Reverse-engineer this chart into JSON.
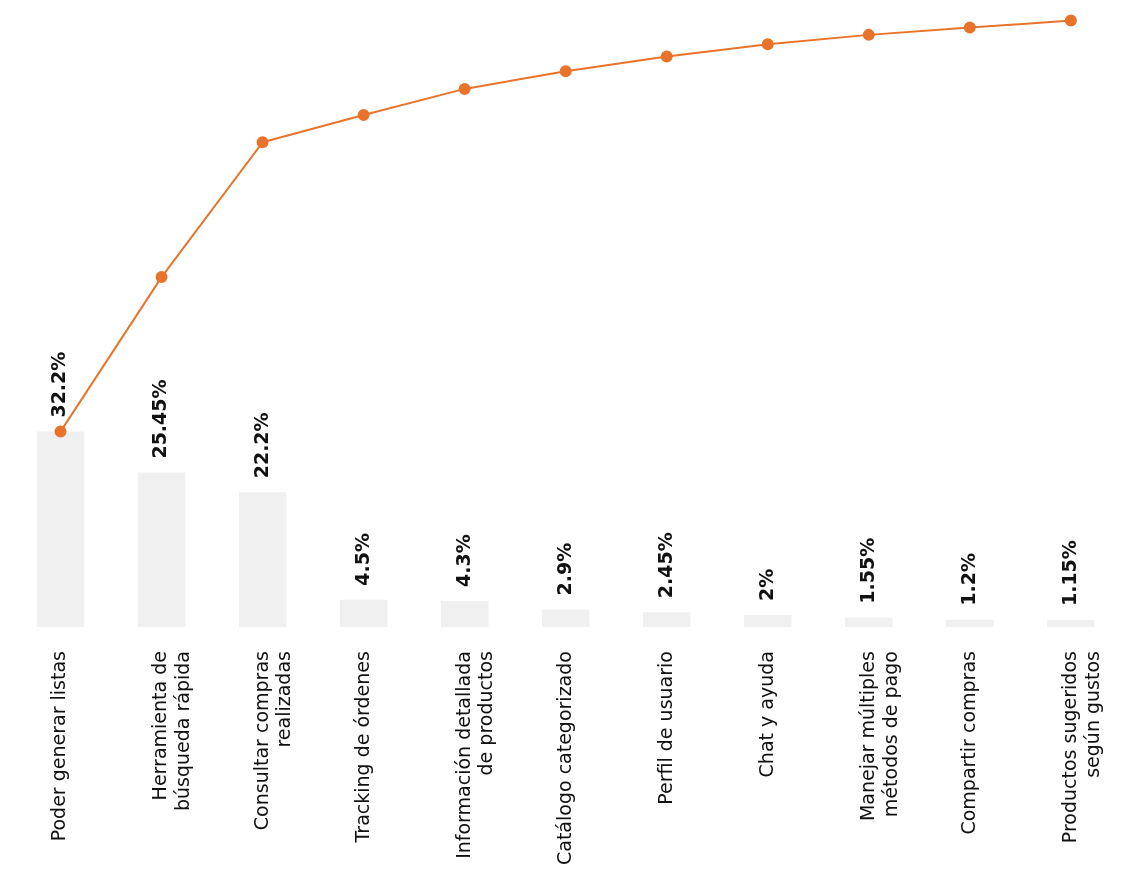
{
  "chart_data": {
    "type": "bar",
    "categories": [
      "Poder generar listas",
      "Herramienta de búsqueda rápida",
      "Consultar compras realizadas",
      "Tracking de órdenes",
      "Información detallada de productos",
      "Catálogo categorizado",
      "Perfil de usuario",
      "Chat y ayuda",
      "Manejar múltiples métodos de pago",
      "Compartir compras",
      "Productos sugeridos según gustos"
    ],
    "series": [
      {
        "color": "#f0f0f0",
        "values": [
          32.2,
          25.45,
          22.2,
          4.5,
          4.3,
          2.9,
          2.45,
          2,
          1.55,
          1.2,
          1.15
        ],
        "value_labels": [
          "32.2%",
          "25.45%",
          "22.2%",
          "4.5%",
          "4.3%",
          "2.9%",
          "2.45%",
          "2%",
          "1.55%",
          "1.2%",
          "1.15%"
        ]
      },
      {
        "type": "line",
        "color": "#e8732a",
        "marker": "circle",
        "values": [
          32.2,
          57.65,
          79.85,
          84.35,
          88.65,
          91.55,
          94,
          96,
          97.55,
          98.75,
          99.9
        ]
      }
    ],
    "grid": false,
    "legend": false,
    "tick_labels": "x"
  }
}
